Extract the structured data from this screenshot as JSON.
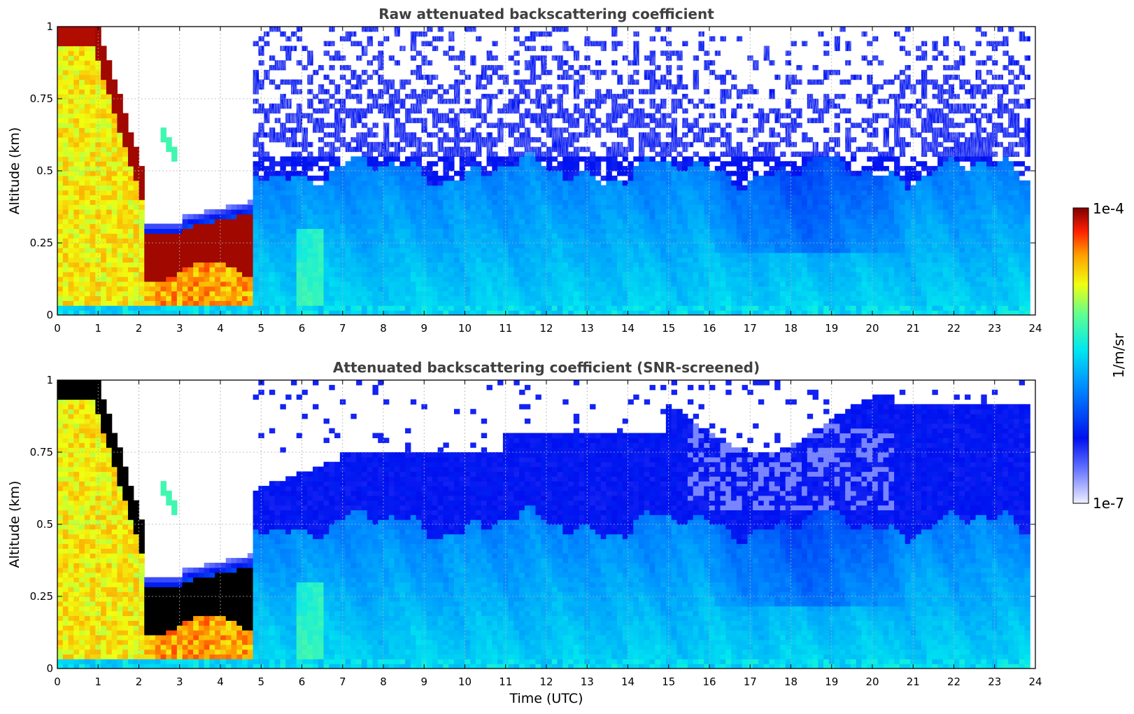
{
  "chart_data": [
    {
      "type": "heatmap",
      "title": "Raw attenuated backscattering coefficient",
      "xlabel": "",
      "ylabel": "Altitude (km)",
      "xlim": [
        0,
        24
      ],
      "ylim": [
        0,
        1
      ],
      "xticks": [
        "0",
        "1",
        "2",
        "3",
        "4",
        "5",
        "6",
        "7",
        "8",
        "9",
        "10",
        "11",
        "12",
        "13",
        "14",
        "15",
        "16",
        "17",
        "18",
        "19",
        "20",
        "21",
        "22",
        "23",
        "24"
      ],
      "yticks": [
        "0",
        "0.25",
        "0.5",
        "0.75",
        "1"
      ],
      "grid": true,
      "screened": false,
      "regions": [
        {
          "x": [
            0,
            2.1
          ],
          "y": [
            0,
            1
          ],
          "level": "high (yellow-orange), saturated near top"
        },
        {
          "x": [
            2.1,
            4.8
          ],
          "y": [
            0.15,
            0.35
          ],
          "level": "saturated (dark red) layer"
        },
        {
          "x": [
            4.8,
            23.8
          ],
          "y": [
            0,
            0.5
          ],
          "level": "low (cyan-blue)"
        },
        {
          "x": [
            4.8,
            23.8
          ],
          "y": [
            0.5,
            1
          ],
          "level": "noise (blue speckle)"
        }
      ]
    },
    {
      "type": "heatmap",
      "title": "Attenuated backscattering coefficient (SNR-screened)",
      "xlabel": "Time (UTC)",
      "ylabel": "Altitude (km)",
      "xlim": [
        0,
        24
      ],
      "ylim": [
        0,
        1
      ],
      "xticks": [
        "0",
        "1",
        "2",
        "3",
        "4",
        "5",
        "6",
        "7",
        "8",
        "9",
        "10",
        "11",
        "12",
        "13",
        "14",
        "15",
        "16",
        "17",
        "18",
        "19",
        "20",
        "21",
        "22",
        "23",
        "24"
      ],
      "yticks": [
        "0",
        "0.25",
        "0.5",
        "0.75",
        "1"
      ],
      "grid": true,
      "screened": true,
      "regions": [
        {
          "x": [
            0,
            2.1
          ],
          "y": [
            0,
            1
          ],
          "level": "high (yellow-orange), saturated black near top"
        },
        {
          "x": [
            2.1,
            4.8
          ],
          "y": [
            0.15,
            0.35
          ],
          "level": "saturated (black) layer"
        },
        {
          "x": [
            4.8,
            23.8
          ],
          "y": [
            0,
            0.5
          ],
          "level": "low (cyan-blue)"
        },
        {
          "x": [
            4.8,
            23.8
          ],
          "y": [
            0.5,
            0.9
          ],
          "level": "low (blue), screened above"
        }
      ]
    }
  ],
  "colorbar": {
    "label": "1/m/sr",
    "max_label": "1e-4",
    "min_label": "1e-7",
    "colormap": [
      "#f0f0ff",
      "#0000ff",
      "#00e0ff",
      "#ffff00",
      "#ff4000",
      "#800000"
    ]
  }
}
